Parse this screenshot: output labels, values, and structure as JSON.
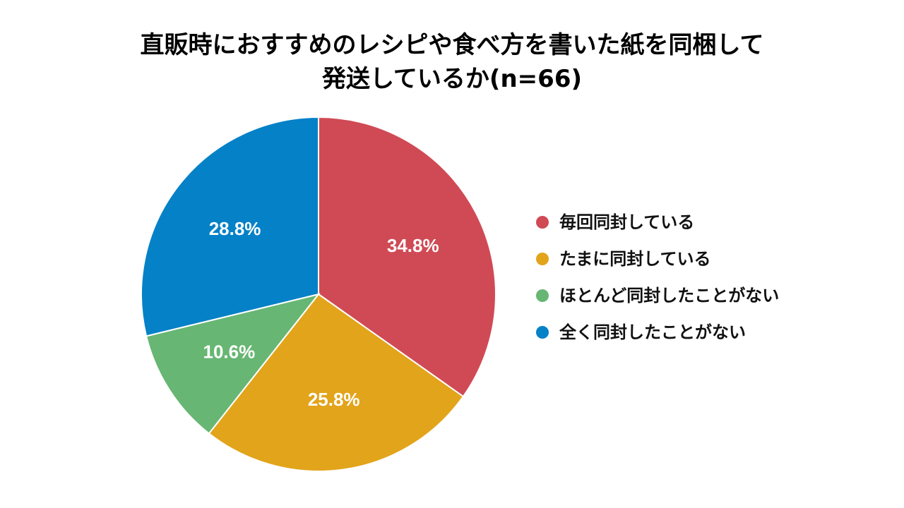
{
  "chart_data": {
    "type": "pie",
    "title_lines": [
      "直販時におすすめのレシピや食べ方を書いた紙を同梱して",
      "発送しているか(n=66)"
    ],
    "slices": [
      {
        "label": "毎回同封している",
        "value": 34.8,
        "display": "34.8%",
        "color": "#d04a55"
      },
      {
        "label": "たまに同封している",
        "value": 25.8,
        "display": "25.8%",
        "color": "#e2a41b"
      },
      {
        "label": "ほとんど同封したことがない",
        "value": 10.6,
        "display": "10.6%",
        "color": "#67b673"
      },
      {
        "label": "全く同封したことがない",
        "value": 28.8,
        "display": "28.8%",
        "color": "#0581c7"
      }
    ],
    "legend_position": "right",
    "start_angle": "12 o'clock, clockwise"
  }
}
